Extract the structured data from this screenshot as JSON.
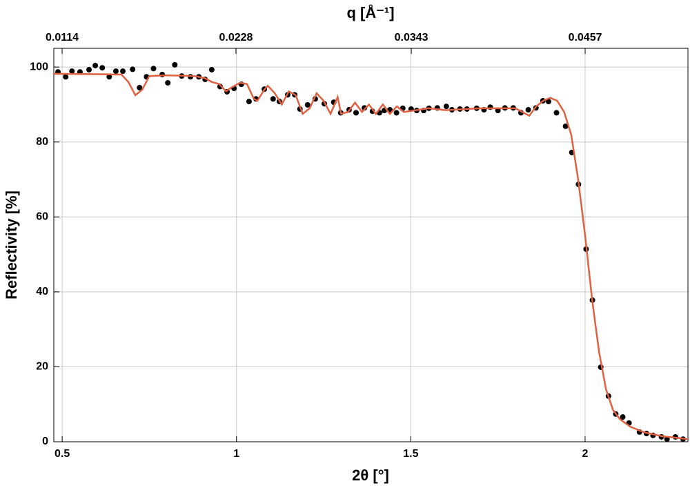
{
  "chart_data": {
    "type": "scatter",
    "xlabel": "2θ [°]",
    "ylabel": "Reflectivity [%]",
    "x2label": "q [Å⁻¹]",
    "xlim": [
      0.476,
      2.295
    ],
    "ylim": [
      0,
      105
    ],
    "x2lim": [
      0.010857,
      0.05244
    ],
    "xticks": [
      0.5,
      1,
      1.5,
      2
    ],
    "yticks": [
      0,
      20,
      40,
      60,
      80,
      100
    ],
    "x2ticks": [
      0.0114,
      0.0228,
      0.0343,
      0.0457
    ],
    "grid": true,
    "series": [
      {
        "type": "scatter",
        "color": "#000000",
        "x": [
          0.488,
          0.51,
          0.528,
          0.551,
          0.577,
          0.595,
          0.615,
          0.635,
          0.654,
          0.674,
          0.702,
          0.722,
          0.742,
          0.762,
          0.787,
          0.803,
          0.823,
          0.843,
          0.868,
          0.892,
          0.91,
          0.929,
          0.953,
          0.973,
          0.993,
          1.014,
          1.036,
          1.056,
          1.08,
          1.105,
          1.123,
          1.147,
          1.167,
          1.182,
          1.204,
          1.226,
          1.252,
          1.279,
          1.299,
          1.323,
          1.343,
          1.367,
          1.39,
          1.41,
          1.424,
          1.44,
          1.459,
          1.477,
          1.501,
          1.517,
          1.537,
          1.552,
          1.576,
          1.602,
          1.618,
          1.641,
          1.661,
          1.689,
          1.71,
          1.728,
          1.75,
          1.77,
          1.794,
          1.816,
          1.837,
          1.859,
          1.879,
          1.895,
          1.918,
          1.944,
          1.962,
          1.981,
          2.003,
          2.021,
          2.045,
          2.067,
          2.088,
          2.108,
          2.126,
          2.156,
          2.176,
          2.195,
          2.219,
          2.235,
          2.259,
          2.281
        ],
        "values": [
          98.7,
          97.4,
          98.9,
          98.7,
          99.3,
          100.4,
          99.8,
          97.4,
          98.9,
          98.9,
          99.4,
          94.5,
          97.4,
          99.6,
          98.0,
          95.8,
          100.6,
          97.6,
          97.4,
          97.4,
          96.7,
          99.3,
          94.8,
          93.4,
          94.3,
          95.4,
          90.8,
          91.5,
          94.1,
          91.5,
          90.8,
          92.6,
          92.6,
          88.8,
          89.9,
          91.5,
          90.2,
          90.6,
          87.8,
          88.6,
          87.8,
          89.1,
          88.2,
          87.8,
          88.4,
          88.6,
          87.8,
          89.0,
          88.8,
          88.4,
          88.4,
          89.0,
          89.1,
          89.5,
          88.6,
          88.8,
          88.8,
          89.0,
          88.6,
          89.3,
          88.4,
          89.1,
          89.1,
          87.8,
          88.6,
          89.1,
          91.0,
          90.8,
          87.8,
          84.2,
          77.2,
          68.7,
          51.4,
          37.8,
          19.9,
          12.2,
          7.4,
          6.6,
          5.0,
          2.6,
          2.2,
          1.7,
          1.3,
          0.7,
          1.3,
          0.7
        ]
      },
      {
        "type": "line",
        "color": "#e0603f",
        "x": [
          0.476,
          0.6,
          0.67,
          0.69,
          0.71,
          0.73,
          0.75,
          0.8,
          0.88,
          0.91,
          0.93,
          0.95,
          0.97,
          0.985,
          1.01,
          1.03,
          1.05,
          1.06,
          1.08,
          1.09,
          1.11,
          1.13,
          1.15,
          1.17,
          1.19,
          1.21,
          1.23,
          1.25,
          1.27,
          1.29,
          1.3,
          1.32,
          1.34,
          1.36,
          1.38,
          1.4,
          1.42,
          1.44,
          1.46,
          1.48,
          1.55,
          1.6,
          1.7,
          1.8,
          1.82,
          1.84,
          1.86,
          1.88,
          1.9,
          1.92,
          1.94,
          1.96,
          1.98,
          2.0,
          2.02,
          2.04,
          2.06,
          2.08,
          2.1,
          2.13,
          2.17,
          2.22,
          2.295
        ],
        "values": [
          98.2,
          98.1,
          98,
          96,
          92.5,
          94,
          97.6,
          97.8,
          97.6,
          97,
          96,
          95.5,
          93.5,
          94.5,
          95.8,
          95.5,
          91.5,
          91,
          94,
          95,
          93,
          90,
          93.5,
          92.5,
          87.5,
          89,
          93,
          91,
          87.5,
          92,
          87.5,
          88,
          90.5,
          88,
          90,
          87.5,
          90,
          87.5,
          89.5,
          88,
          89,
          88.5,
          89,
          89,
          88,
          87,
          89.5,
          91,
          91.8,
          91,
          88,
          82,
          70,
          55,
          38,
          24,
          14,
          8.5,
          6,
          4,
          2.5,
          1.5,
          0.7
        ]
      }
    ]
  }
}
